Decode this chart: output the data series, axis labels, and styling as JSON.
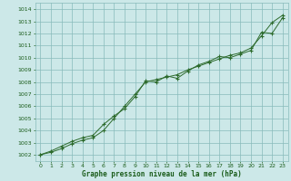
{
  "xlabel": "Graphe pression niveau de la mer (hPa)",
  "ylim": [
    1001.5,
    1014.5
  ],
  "xlim": [
    -0.5,
    23.5
  ],
  "yticks": [
    1002,
    1003,
    1004,
    1005,
    1006,
    1007,
    1008,
    1009,
    1010,
    1011,
    1012,
    1013,
    1014
  ],
  "xticks": [
    0,
    1,
    2,
    3,
    4,
    5,
    6,
    7,
    8,
    9,
    10,
    11,
    12,
    13,
    14,
    15,
    16,
    17,
    18,
    19,
    20,
    21,
    22,
    23
  ],
  "bg_color": "#cce8e8",
  "line_color": "#2d6b2d",
  "grid_color": "#88bbbb",
  "text_color": "#1a5c1a",
  "line1_y": [
    1002.0,
    1002.2,
    1002.5,
    1002.9,
    1003.2,
    1003.4,
    1004.0,
    1005.0,
    1006.0,
    1007.0,
    1008.0,
    1008.2,
    1008.4,
    1008.6,
    1009.0,
    1009.3,
    1009.6,
    1009.9,
    1010.2,
    1010.4,
    1010.8,
    1011.8,
    1012.9,
    1013.5
  ],
  "line2_y": [
    1002.0,
    1002.3,
    1002.7,
    1003.1,
    1003.4,
    1003.6,
    1004.5,
    1005.2,
    1005.8,
    1006.8,
    1008.1,
    1008.0,
    1008.5,
    1008.3,
    1008.9,
    1009.4,
    1009.7,
    1010.1,
    1010.0,
    1010.3,
    1010.6,
    1012.1,
    1012.0,
    1013.3
  ]
}
